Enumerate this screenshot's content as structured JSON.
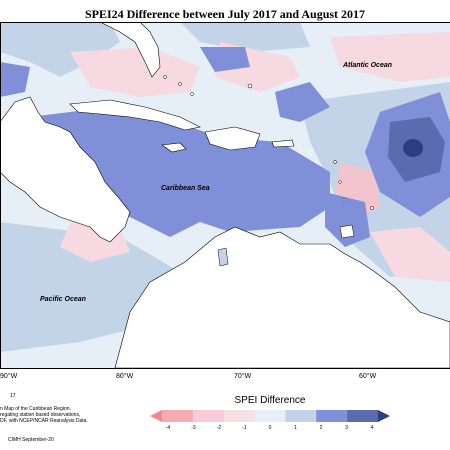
{
  "title": "SPEI24 Difference between July 2017 and August 2017",
  "map": {
    "ocean_labels": {
      "atlantic": "Atlantic Ocean",
      "caribbean": "Caribbean Sea",
      "pacific": "Pacific Ocean"
    },
    "longitude_labels": [
      "90°W",
      "80°W",
      "70°W",
      "60°W"
    ],
    "colors": {
      "land": "#ffffff",
      "coast": "#000000",
      "ocean_neutral": "#e6eff7",
      "pale_blue": "#c3d4e9",
      "mid_blue": "#7f8fd8",
      "deep_blue": "#5a6bb0",
      "darkest_blue": "#2b3f7e",
      "pale_pink": "#f6d9e1",
      "pink": "#f2c4cd"
    }
  },
  "footnote": {
    "number": "17",
    "lines": [
      "n Map of the Caribbean Region.",
      "regating station based observations,",
      "DF, with NCEP/NCAR Reanalysis Data."
    ],
    "credit": "CIMH September-20"
  },
  "legend": {
    "title": "SPEI Difference",
    "ticks": [
      "-4",
      "-3",
      "-2",
      "-1",
      "0",
      "1",
      "2",
      "3",
      "4"
    ],
    "colors": [
      "#f4868f",
      "#f6aab3",
      "#f6cdd6",
      "#f6e0e6",
      "#e8eef5",
      "#c3d4e9",
      "#7f8fd8",
      "#5a6bb0",
      "#2e3f80"
    ]
  }
}
